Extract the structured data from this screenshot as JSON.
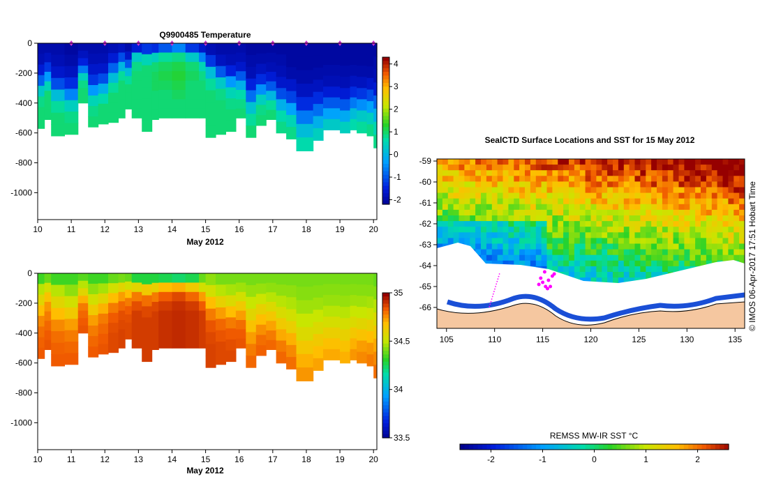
{
  "chart_data": [
    {
      "type": "heatmap",
      "title": "Q9900485  Temperature",
      "xlabel": "May 2012",
      "ylabel": "",
      "x_ticks": [
        "10",
        "11",
        "12",
        "13",
        "14",
        "15",
        "16",
        "17",
        "18",
        "19",
        "20"
      ],
      "xlim": [
        10,
        20.1
      ],
      "y_ticks": [
        "0",
        "-200",
        "-400",
        "-600",
        "-800",
        "-1000"
      ],
      "ylim": [
        -1180,
        0
      ],
      "profile_days": [
        11,
        12,
        13,
        14,
        15,
        16,
        17,
        18,
        19,
        20
      ],
      "colorbar": {
        "ticks": [
          "4",
          "3",
          "2",
          "1",
          "0",
          "-1",
          "-2"
        ],
        "range": [
          -2.2,
          4.3
        ]
      },
      "profiles": [
        {
          "x": 10.0,
          "depth": 570,
          "vals": [
            -1.9,
            -1.8,
            -1.5,
            -0.8,
            0.4,
            0.9,
            1.0,
            1.0
          ]
        },
        {
          "x": 10.2,
          "depth": 510,
          "vals": [
            -1.9,
            -1.7,
            -1.2,
            -0.3,
            0.6,
            1.0,
            1.0,
            1.0
          ]
        },
        {
          "x": 10.4,
          "depth": 620,
          "vals": [
            -1.9,
            -1.8,
            -1.6,
            -1.0,
            0.2,
            0.8,
            1.0,
            1.0
          ]
        },
        {
          "x": 10.8,
          "depth": 610,
          "vals": [
            -2.0,
            -1.9,
            -1.7,
            -1.3,
            -0.5,
            0.5,
            0.9,
            1.0
          ]
        },
        {
          "x": 11.2,
          "depth": 400,
          "vals": [
            -1.9,
            -1.7,
            -1.4,
            -0.6,
            0.5,
            0.9,
            1.0,
            1.0
          ]
        },
        {
          "x": 11.5,
          "depth": 560,
          "vals": [
            -1.9,
            -1.8,
            -1.6,
            -1.2,
            -0.3,
            0.6,
            0.9,
            1.0
          ]
        },
        {
          "x": 11.8,
          "depth": 540,
          "vals": [
            -1.9,
            -1.8,
            -1.6,
            -1.0,
            0.0,
            0.7,
            1.0,
            1.0
          ]
        },
        {
          "x": 12.1,
          "depth": 530,
          "vals": [
            -1.8,
            -1.5,
            -0.8,
            0.2,
            0.8,
            1.0,
            1.0,
            1.0
          ]
        },
        {
          "x": 12.4,
          "depth": 500,
          "vals": [
            -1.7,
            -1.0,
            0.1,
            0.8,
            1.0,
            1.0,
            1.0,
            1.0
          ]
        },
        {
          "x": 12.6,
          "depth": 440,
          "vals": [
            -1.9,
            -1.6,
            -0.9,
            0.2,
            0.8,
            1.0,
            1.0,
            1.0
          ]
        },
        {
          "x": 12.8,
          "depth": 500,
          "vals": [
            -1.5,
            0.4,
            0.9,
            1.0,
            1.0,
            1.0,
            1.0,
            1.0
          ]
        },
        {
          "x": 13.1,
          "depth": 590,
          "vals": [
            -1.2,
            0.6,
            1.0,
            1.0,
            1.0,
            1.0,
            1.0,
            1.0
          ]
        },
        {
          "x": 13.4,
          "depth": 510,
          "vals": [
            -1.3,
            0.5,
            1.0,
            1.1,
            1.1,
            1.0,
            1.0,
            1.0
          ]
        },
        {
          "x": 13.6,
          "depth": 500,
          "vals": [
            -0.9,
            0.8,
            1.1,
            1.2,
            1.1,
            1.0,
            1.0,
            1.0
          ]
        },
        {
          "x": 14.0,
          "depth": 500,
          "vals": [
            -0.5,
            0.9,
            1.2,
            1.3,
            1.2,
            1.1,
            1.0,
            1.0
          ]
        },
        {
          "x": 14.4,
          "depth": 500,
          "vals": [
            -1.2,
            0.4,
            1.0,
            1.1,
            1.0,
            1.0,
            1.0,
            1.0
          ]
        },
        {
          "x": 14.8,
          "depth": 500,
          "vals": [
            -1.6,
            -0.5,
            0.6,
            0.9,
            1.0,
            1.0,
            1.0,
            1.0
          ]
        },
        {
          "x": 15.0,
          "depth": 630,
          "vals": [
            -1.8,
            -1.2,
            0.2,
            0.8,
            1.0,
            1.0,
            1.0,
            1.0
          ]
        },
        {
          "x": 15.3,
          "depth": 610,
          "vals": [
            -1.9,
            -1.7,
            -0.9,
            0.4,
            0.9,
            1.0,
            1.0,
            1.0
          ]
        },
        {
          "x": 15.6,
          "depth": 590,
          "vals": [
            -1.9,
            -1.8,
            -1.4,
            -0.3,
            0.6,
            0.9,
            1.0,
            1.0
          ]
        },
        {
          "x": 15.9,
          "depth": 500,
          "vals": [
            -1.9,
            -1.8,
            -1.6,
            -0.9,
            0.0,
            0.7,
            0.9,
            1.0
          ]
        },
        {
          "x": 16.2,
          "depth": 630,
          "vals": [
            -2.0,
            -1.9,
            -1.8,
            -1.4,
            -0.7,
            0.3,
            0.8,
            1.0
          ]
        },
        {
          "x": 16.5,
          "depth": 550,
          "vals": [
            -2.0,
            -1.9,
            -1.7,
            -1.3,
            -0.4,
            0.5,
            0.9,
            1.0
          ]
        },
        {
          "x": 16.8,
          "depth": 510,
          "vals": [
            -2.0,
            -1.9,
            -1.8,
            -1.5,
            -0.9,
            0.1,
            0.8,
            1.0
          ]
        },
        {
          "x": 17.1,
          "depth": 600,
          "vals": [
            -2.0,
            -1.9,
            -1.8,
            -1.6,
            -1.0,
            0.0,
            0.7,
            0.9
          ]
        },
        {
          "x": 17.4,
          "depth": 640,
          "vals": [
            -2.0,
            -2.0,
            -1.9,
            -1.6,
            -1.1,
            -0.2,
            0.6,
            0.9
          ]
        },
        {
          "x": 17.7,
          "depth": 720,
          "vals": [
            -2.0,
            -2.0,
            -1.9,
            -1.7,
            -1.3,
            -0.6,
            0.2,
            0.7
          ]
        },
        {
          "x": 18.2,
          "depth": 650,
          "vals": [
            -2.0,
            -2.0,
            -1.9,
            -1.7,
            -1.3,
            -0.7,
            0.0,
            0.5
          ]
        },
        {
          "x": 18.5,
          "depth": 580,
          "vals": [
            -2.0,
            -2.0,
            -1.9,
            -1.8,
            -1.5,
            -0.9,
            -0.2,
            0.4
          ]
        },
        {
          "x": 19.0,
          "depth": 600,
          "vals": [
            -2.0,
            -2.0,
            -1.9,
            -1.8,
            -1.5,
            -0.9,
            -0.1,
            0.5
          ]
        },
        {
          "x": 19.3,
          "depth": 580,
          "vals": [
            -2.0,
            -2.0,
            -1.9,
            -1.7,
            -1.3,
            -0.6,
            0.2,
            0.7
          ]
        },
        {
          "x": 19.5,
          "depth": 600,
          "vals": [
            -2.0,
            -2.0,
            -1.9,
            -1.7,
            -1.2,
            -0.4,
            0.4,
            0.8
          ]
        },
        {
          "x": 19.8,
          "depth": 620,
          "vals": [
            -2.0,
            -2.0,
            -1.9,
            -1.6,
            -1.0,
            -0.2,
            0.5,
            0.9
          ]
        },
        {
          "x": 20.0,
          "depth": 700,
          "vals": [
            -2.0,
            -1.9,
            -1.8,
            -1.5,
            -0.8,
            0.0,
            0.6,
            0.9
          ]
        }
      ]
    },
    {
      "type": "heatmap",
      "title": "",
      "xlabel": "May 2012",
      "ylabel": "",
      "x_ticks": [
        "10",
        "11",
        "12",
        "13",
        "14",
        "15",
        "16",
        "17",
        "18",
        "19",
        "20"
      ],
      "xlim": [
        10,
        20.1
      ],
      "y_ticks": [
        "0",
        "-200",
        "-400",
        "-600",
        "-800",
        "-1000"
      ],
      "ylim": [
        -1180,
        0
      ],
      "colorbar": {
        "ticks": [
          "35",
          "34.5",
          "34",
          "33.5"
        ],
        "range": [
          33.5,
          35.0
        ]
      },
      "profiles": [
        {
          "x": 10.0,
          "depth": 570,
          "vals": [
            34.35,
            34.5,
            34.6,
            34.7,
            34.78,
            34.82,
            34.84,
            34.85
          ]
        },
        {
          "x": 10.2,
          "depth": 510,
          "vals": [
            34.4,
            34.55,
            34.68,
            34.76,
            34.8,
            34.83,
            34.85,
            34.86
          ]
        },
        {
          "x": 10.4,
          "depth": 620,
          "vals": [
            34.35,
            34.5,
            34.6,
            34.7,
            34.78,
            34.82,
            34.84,
            34.85
          ]
        },
        {
          "x": 10.8,
          "depth": 610,
          "vals": [
            34.35,
            34.45,
            34.55,
            34.65,
            34.75,
            34.8,
            34.83,
            34.85
          ]
        },
        {
          "x": 11.2,
          "depth": 400,
          "vals": [
            34.38,
            34.5,
            34.6,
            34.72,
            34.8,
            34.83,
            34.85,
            34.86
          ]
        },
        {
          "x": 11.5,
          "depth": 560,
          "vals": [
            34.35,
            34.45,
            34.55,
            34.65,
            34.75,
            34.8,
            34.83,
            34.85
          ]
        },
        {
          "x": 11.8,
          "depth": 540,
          "vals": [
            34.35,
            34.48,
            34.6,
            34.72,
            34.8,
            34.83,
            34.85,
            34.86
          ]
        },
        {
          "x": 12.1,
          "depth": 530,
          "vals": [
            34.4,
            34.55,
            34.7,
            34.8,
            34.85,
            34.87,
            34.88,
            34.88
          ]
        },
        {
          "x": 12.4,
          "depth": 500,
          "vals": [
            34.42,
            34.6,
            34.75,
            34.83,
            34.87,
            34.88,
            34.89,
            34.89
          ]
        },
        {
          "x": 12.6,
          "depth": 440,
          "vals": [
            34.4,
            34.55,
            34.7,
            34.8,
            34.85,
            34.87,
            34.88,
            34.88
          ]
        },
        {
          "x": 12.8,
          "depth": 500,
          "vals": [
            34.3,
            34.6,
            34.8,
            34.87,
            34.9,
            34.9,
            34.9,
            34.9
          ]
        },
        {
          "x": 13.1,
          "depth": 590,
          "vals": [
            34.3,
            34.65,
            34.82,
            34.88,
            34.9,
            34.9,
            34.9,
            34.9
          ]
        },
        {
          "x": 13.4,
          "depth": 510,
          "vals": [
            34.3,
            34.62,
            34.8,
            34.88,
            34.9,
            34.9,
            34.9,
            34.9
          ]
        },
        {
          "x": 13.6,
          "depth": 500,
          "vals": [
            34.28,
            34.7,
            34.85,
            34.9,
            34.92,
            34.92,
            34.92,
            34.92
          ]
        },
        {
          "x": 14.0,
          "depth": 500,
          "vals": [
            34.25,
            34.72,
            34.88,
            34.92,
            34.93,
            34.93,
            34.93,
            34.93
          ]
        },
        {
          "x": 14.4,
          "depth": 500,
          "vals": [
            34.28,
            34.65,
            34.83,
            34.9,
            34.92,
            34.92,
            34.92,
            34.92
          ]
        },
        {
          "x": 14.8,
          "depth": 500,
          "vals": [
            34.4,
            34.55,
            34.75,
            34.85,
            34.9,
            34.9,
            34.9,
            34.9
          ]
        },
        {
          "x": 15.0,
          "depth": 630,
          "vals": [
            34.45,
            34.55,
            34.7,
            34.8,
            34.86,
            34.88,
            34.89,
            34.89
          ]
        },
        {
          "x": 15.3,
          "depth": 610,
          "vals": [
            34.42,
            34.5,
            34.62,
            34.75,
            34.83,
            34.86,
            34.88,
            34.88
          ]
        },
        {
          "x": 15.6,
          "depth": 590,
          "vals": [
            34.42,
            34.48,
            34.58,
            34.7,
            34.8,
            34.85,
            34.87,
            34.88
          ]
        },
        {
          "x": 15.9,
          "depth": 500,
          "vals": [
            34.42,
            34.47,
            34.55,
            34.65,
            34.75,
            34.82,
            34.85,
            34.86
          ]
        },
        {
          "x": 16.2,
          "depth": 630,
          "vals": [
            34.42,
            34.46,
            34.52,
            34.6,
            34.68,
            34.75,
            34.8,
            34.83
          ]
        },
        {
          "x": 16.5,
          "depth": 550,
          "vals": [
            34.42,
            34.46,
            34.53,
            34.62,
            34.7,
            34.77,
            34.82,
            34.84
          ]
        },
        {
          "x": 16.8,
          "depth": 510,
          "vals": [
            34.42,
            34.45,
            34.5,
            34.58,
            34.66,
            34.74,
            34.8,
            34.83
          ]
        },
        {
          "x": 17.1,
          "depth": 600,
          "vals": [
            34.42,
            34.45,
            34.5,
            34.57,
            34.65,
            34.73,
            34.8,
            34.83
          ]
        },
        {
          "x": 17.4,
          "depth": 640,
          "vals": [
            34.42,
            34.45,
            34.49,
            34.55,
            34.63,
            34.72,
            34.78,
            34.82
          ]
        },
        {
          "x": 17.7,
          "depth": 720,
          "vals": [
            34.42,
            34.44,
            34.47,
            34.52,
            34.58,
            34.66,
            34.72,
            34.76
          ]
        },
        {
          "x": 18.2,
          "depth": 650,
          "vals": [
            34.42,
            34.44,
            34.47,
            34.52,
            34.58,
            34.65,
            34.7,
            34.74
          ]
        },
        {
          "x": 18.5,
          "depth": 580,
          "vals": [
            34.42,
            34.44,
            34.46,
            34.5,
            34.56,
            34.63,
            34.69,
            34.73
          ]
        },
        {
          "x": 19.0,
          "depth": 600,
          "vals": [
            34.42,
            34.44,
            34.46,
            34.5,
            34.56,
            34.62,
            34.68,
            34.72
          ]
        },
        {
          "x": 19.3,
          "depth": 580,
          "vals": [
            34.42,
            34.44,
            34.47,
            34.52,
            34.58,
            34.66,
            34.72,
            34.76
          ]
        },
        {
          "x": 19.5,
          "depth": 600,
          "vals": [
            34.42,
            34.44,
            34.47,
            34.52,
            34.6,
            34.68,
            34.75,
            34.78
          ]
        },
        {
          "x": 19.8,
          "depth": 620,
          "vals": [
            34.42,
            34.44,
            34.48,
            34.54,
            34.62,
            34.7,
            34.76,
            34.8
          ]
        },
        {
          "x": 20.0,
          "depth": 700,
          "vals": [
            34.4,
            34.44,
            34.5,
            34.58,
            34.66,
            34.73,
            34.78,
            34.82
          ]
        }
      ]
    },
    {
      "type": "heatmap",
      "title": "SealCTD Surface Locations and SST for 15 May 2012",
      "xlabel": "",
      "ylabel": "",
      "x_ticks": [
        "105",
        "110",
        "115",
        "120",
        "125",
        "130",
        "135"
      ],
      "xlim": [
        104,
        136
      ],
      "y_ticks": [
        "-59",
        "-60",
        "-61",
        "-62",
        "-63",
        "-64",
        "-65",
        "-66"
      ],
      "ylim": [
        -67.0,
        -58.9
      ],
      "colorbar": {
        "label": "REMSS MW-IR SST °C",
        "ticks": [
          "-2",
          "-1",
          "0",
          "1",
          "2"
        ],
        "range": [
          -2.6,
          2.6
        ]
      }
    }
  ],
  "credit": "© IMOS 06-Apr-2017 17:51 Hobart Time",
  "colors": {
    "land": "#F5C7A0",
    "track": "#FF00FF",
    "marker": "#CC33CC"
  }
}
